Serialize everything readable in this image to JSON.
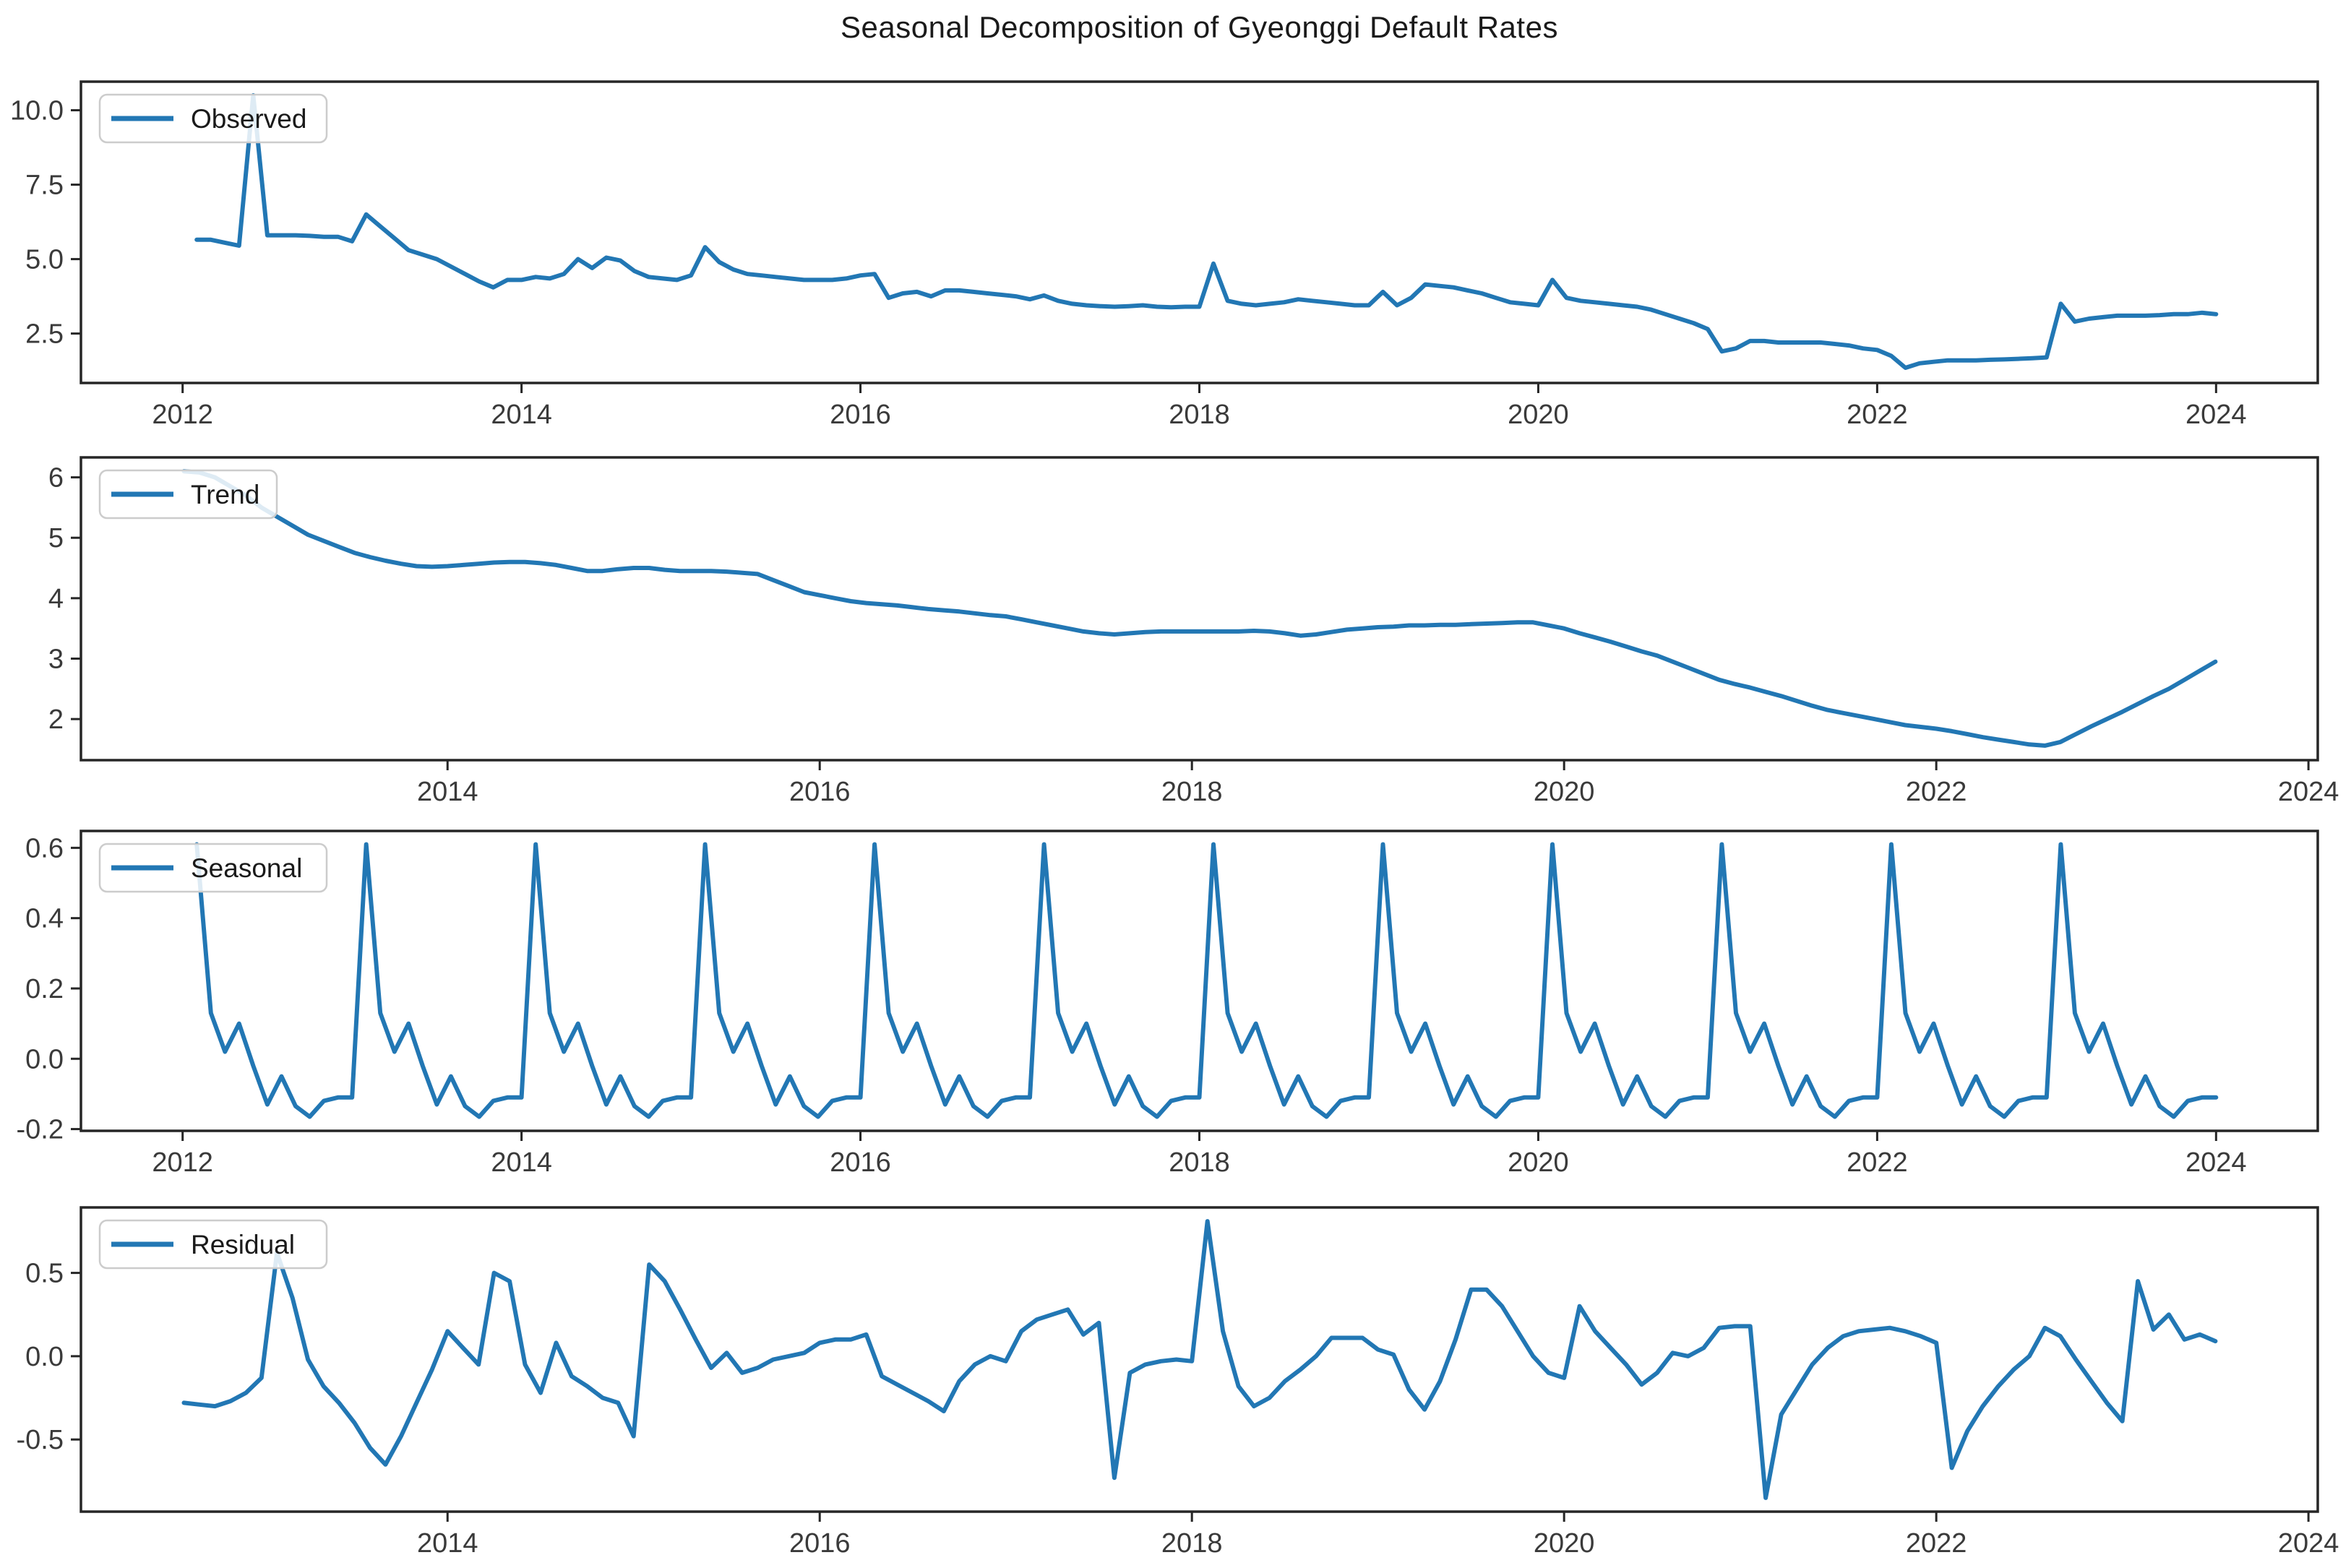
{
  "title": "Seasonal Decomposition of Gyeonggi Default Rates",
  "line_color": "#2277b4",
  "axis_color": "#262626",
  "tick_label_color": "#3a3a3a",
  "legend_border_color": "#cccccc",
  "chart_data": [
    {
      "id": "observed",
      "type": "line",
      "legend": "Observed",
      "start": {
        "year": 2012,
        "month": 1
      },
      "freq": "monthly",
      "xlim": [
        2011.4,
        2024.6
      ],
      "ylim": [
        0.84,
        10.96
      ],
      "xticks": [
        2012,
        2014,
        2016,
        2018,
        2020,
        2022,
        2024
      ],
      "yticks": [
        2.5,
        5.0,
        7.5,
        10.0
      ],
      "ytick_labels": [
        "2.5",
        "5.0",
        "7.5",
        "10.0"
      ],
      "grid": false,
      "legend_position": "upper-left",
      "values": [
        5.65,
        5.65,
        5.55,
        5.45,
        10.5,
        5.8,
        5.8,
        5.8,
        5.78,
        5.75,
        5.75,
        5.6,
        6.5,
        6.1,
        5.7,
        5.3,
        5.15,
        5.0,
        4.75,
        4.5,
        4.25,
        4.05,
        4.3,
        4.3,
        4.4,
        4.35,
        4.5,
        5.0,
        4.7,
        5.05,
        4.95,
        4.6,
        4.4,
        4.35,
        4.3,
        4.45,
        5.4,
        4.9,
        4.65,
        4.5,
        4.45,
        4.4,
        4.35,
        4.3,
        4.3,
        4.3,
        4.35,
        4.45,
        4.5,
        3.7,
        3.85,
        3.9,
        3.75,
        3.95,
        3.95,
        3.9,
        3.85,
        3.8,
        3.75,
        3.65,
        3.78,
        3.6,
        3.5,
        3.45,
        3.42,
        3.4,
        3.42,
        3.45,
        3.4,
        3.38,
        3.4,
        3.4,
        4.85,
        3.6,
        3.5,
        3.45,
        3.5,
        3.55,
        3.65,
        3.6,
        3.55,
        3.5,
        3.45,
        3.45,
        3.9,
        3.45,
        3.7,
        4.15,
        4.1,
        4.05,
        3.95,
        3.85,
        3.7,
        3.55,
        3.5,
        3.45,
        4.3,
        3.7,
        3.6,
        3.55,
        3.5,
        3.45,
        3.4,
        3.3,
        3.15,
        3.0,
        2.85,
        2.65,
        1.9,
        2.0,
        2.25,
        2.25,
        2.2,
        2.2,
        2.2,
        2.2,
        2.15,
        2.1,
        2.0,
        1.95,
        1.75,
        1.35,
        1.5,
        1.55,
        1.6,
        1.6,
        1.6,
        1.62,
        1.63,
        1.65,
        1.67,
        1.7,
        3.5,
        2.9,
        3.0,
        3.05,
        3.1,
        3.1,
        3.1,
        3.12,
        3.15,
        3.15,
        3.2,
        3.15
      ]
    },
    {
      "id": "trend",
      "type": "line",
      "legend": "Trend",
      "start": {
        "year": 2012,
        "month": 7
      },
      "freq": "monthly",
      "xlim": [
        2012.03,
        2024.05
      ],
      "ylim": [
        1.32,
        6.33
      ],
      "xticks": [
        2014,
        2016,
        2018,
        2020,
        2022,
        2024
      ],
      "yticks": [
        2,
        3,
        4,
        5,
        6
      ],
      "ytick_labels": [
        "2",
        "3",
        "4",
        "5",
        "6"
      ],
      "grid": false,
      "legend_position": "upper-left",
      "values": [
        6.1,
        6.08,
        6.0,
        5.85,
        5.7,
        5.5,
        5.35,
        5.2,
        5.05,
        4.95,
        4.85,
        4.75,
        4.68,
        4.62,
        4.57,
        4.53,
        4.52,
        4.53,
        4.55,
        4.57,
        4.59,
        4.6,
        4.6,
        4.58,
        4.55,
        4.5,
        4.45,
        4.45,
        4.48,
        4.5,
        4.5,
        4.47,
        4.45,
        4.45,
        4.45,
        4.44,
        4.42,
        4.4,
        4.3,
        4.2,
        4.1,
        4.05,
        4.0,
        3.95,
        3.92,
        3.9,
        3.88,
        3.85,
        3.82,
        3.8,
        3.78,
        3.75,
        3.72,
        3.7,
        3.65,
        3.6,
        3.55,
        3.5,
        3.45,
        3.42,
        3.4,
        3.42,
        3.44,
        3.45,
        3.45,
        3.45,
        3.45,
        3.45,
        3.45,
        3.46,
        3.45,
        3.42,
        3.38,
        3.4,
        3.44,
        3.48,
        3.5,
        3.52,
        3.53,
        3.55,
        3.55,
        3.56,
        3.56,
        3.57,
        3.58,
        3.59,
        3.6,
        3.6,
        3.55,
        3.5,
        3.42,
        3.35,
        3.28,
        3.2,
        3.12,
        3.05,
        2.95,
        2.85,
        2.75,
        2.65,
        2.58,
        2.52,
        2.45,
        2.38,
        2.3,
        2.22,
        2.15,
        2.1,
        2.05,
        2.0,
        1.95,
        1.9,
        1.87,
        1.84,
        1.8,
        1.75,
        1.7,
        1.66,
        1.62,
        1.58,
        1.56,
        1.62,
        1.75,
        1.88,
        2.0,
        2.12,
        2.25,
        2.38,
        2.5,
        2.65,
        2.8,
        2.95
      ]
    },
    {
      "id": "seasonal",
      "type": "line",
      "legend": "Seasonal",
      "start": {
        "year": 2012,
        "month": 1
      },
      "freq": "monthly",
      "xlim": [
        2011.4,
        2024.6
      ],
      "ylim": [
        -0.205,
        0.648
      ],
      "xticks": [
        2012,
        2014,
        2016,
        2018,
        2020,
        2022,
        2024
      ],
      "yticks": [
        -0.2,
        0.0,
        0.2,
        0.4,
        0.6
      ],
      "ytick_labels": [
        "-0.2",
        "0.0",
        "0.2",
        "0.4",
        "0.6"
      ],
      "grid": false,
      "legend_position": "upper-left",
      "pattern_values": [
        0.61,
        0.13,
        0.02,
        0.1,
        -0.02,
        -0.13,
        -0.05,
        -0.135,
        -0.165,
        -0.12,
        -0.11,
        -0.11
      ],
      "pattern_cycles": 12,
      "values": []
    },
    {
      "id": "residual",
      "type": "line",
      "legend": "Residual",
      "start": {
        "year": 2012,
        "month": 7
      },
      "freq": "monthly",
      "xlim": [
        2012.03,
        2024.05
      ],
      "ylim": [
        -0.933,
        0.893
      ],
      "xticks": [
        2014,
        2016,
        2018,
        2020,
        2022,
        2024
      ],
      "yticks": [
        -0.5,
        0.0,
        0.5
      ],
      "ytick_labels": [
        "-0.5",
        "0.0",
        "0.5"
      ],
      "grid": false,
      "legend_position": "upper-left",
      "values": [
        -0.28,
        -0.29,
        -0.3,
        -0.27,
        -0.22,
        -0.13,
        0.62,
        0.35,
        -0.02,
        -0.18,
        -0.28,
        -0.4,
        -0.55,
        -0.65,
        -0.48,
        -0.28,
        -0.08,
        0.15,
        0.05,
        -0.05,
        0.5,
        0.45,
        -0.05,
        -0.22,
        0.08,
        -0.12,
        -0.18,
        -0.25,
        -0.28,
        -0.48,
        0.55,
        0.45,
        0.28,
        0.1,
        -0.07,
        0.02,
        -0.1,
        -0.07,
        -0.02,
        0.0,
        0.02,
        0.08,
        0.1,
        0.1,
        0.13,
        -0.12,
        -0.17,
        -0.22,
        -0.27,
        -0.33,
        -0.15,
        -0.05,
        0.0,
        -0.03,
        0.15,
        0.22,
        0.25,
        0.28,
        0.13,
        0.2,
        -0.73,
        -0.1,
        -0.05,
        -0.03,
        -0.02,
        -0.03,
        0.81,
        0.15,
        -0.18,
        -0.3,
        -0.25,
        -0.15,
        -0.08,
        0.0,
        0.11,
        0.11,
        0.11,
        0.04,
        0.01,
        -0.2,
        -0.32,
        -0.15,
        0.1,
        0.4,
        0.4,
        0.3,
        0.15,
        0.0,
        -0.1,
        -0.13,
        0.3,
        0.15,
        0.05,
        -0.05,
        -0.17,
        -0.1,
        0.02,
        0.0,
        0.05,
        0.17,
        0.18,
        0.18,
        -0.85,
        -0.35,
        -0.2,
        -0.05,
        0.05,
        0.12,
        0.15,
        0.16,
        0.17,
        0.15,
        0.12,
        0.08,
        -0.67,
        -0.45,
        -0.3,
        -0.18,
        -0.08,
        0.0,
        0.17,
        0.12,
        -0.02,
        -0.15,
        -0.28,
        -0.39,
        0.45,
        0.16,
        0.25,
        0.1,
        0.13,
        0.09
      ]
    }
  ]
}
